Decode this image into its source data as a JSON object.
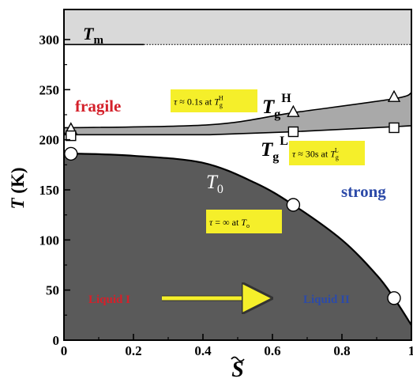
{
  "chart_data": {
    "type": "area",
    "xlabel": "S",
    "ylabel": "T (K)",
    "xlim": [
      0,
      1
    ],
    "ylim": [
      0,
      330
    ],
    "xticks": [
      "0",
      "0.2",
      "0.4",
      "0.6",
      "0.8",
      "1"
    ],
    "yticks": [
      "0",
      "50",
      "100",
      "150",
      "200",
      "250",
      "300"
    ],
    "tm_line": {
      "label": "T",
      "subscript": "m",
      "y": 295
    },
    "regions": [
      {
        "name": "T0 region",
        "color": "#5a5a5a",
        "boundary_x": [
          0,
          0.05,
          0.2,
          0.4,
          0.55,
          0.66,
          0.8,
          0.9,
          0.95,
          1.0
        ],
        "boundary_y": [
          186,
          186,
          184,
          177,
          157,
          135,
          100,
          65,
          42,
          15
        ]
      },
      {
        "name": "glass transition band",
        "color": "#a9a9a9",
        "lower_x": [
          0,
          0.42,
          0.66,
          0.95,
          1.0
        ],
        "lower_y": [
          205,
          205,
          208,
          213,
          214
        ],
        "upper_x": [
          0,
          0.42,
          0.66,
          0.95,
          1.0
        ],
        "upper_y": [
          212,
          215,
          227,
          241,
          247
        ]
      }
    ],
    "series": [
      {
        "name": "Tg^H",
        "marker": "triangle",
        "x": [
          0.02,
          0.66,
          0.95
        ],
        "y": [
          211,
          228,
          243
        ]
      },
      {
        "name": "Tg^L",
        "marker": "square",
        "x": [
          0.02,
          0.66,
          0.95
        ],
        "y": [
          204,
          208,
          212
        ]
      },
      {
        "name": "T0",
        "marker": "circle",
        "x": [
          0.02,
          0.66,
          0.95
        ],
        "y": [
          186,
          135,
          42
        ]
      }
    ],
    "labels": {
      "tm_main": "T",
      "tm_sub": "m",
      "fragile": "fragile",
      "strong": "strong",
      "tgh_main": "T",
      "tgh_sub": "g",
      "tgh_sup": "H",
      "tgl_main": "T",
      "tgl_sub": "g",
      "tgl_sup": "L",
      "t0_main": "T",
      "t0_sub": "0",
      "liquid1": "Liquid I",
      "liquid2": "Liquid II",
      "box_high": {
        "tau": "τ",
        "eq": " ≈ 0.1s at ",
        "T": "T",
        "sub": "g",
        "sup": "H"
      },
      "box_low": {
        "tau": "τ",
        "eq": " ≈ 30s at ",
        "T": "T",
        "sub": "g",
        "sup": "L"
      },
      "box_inf": {
        "tau": "τ",
        "eq": " = ∞ at ",
        "T": "T",
        "sub": "o"
      }
    },
    "colors": {
      "melt_band": "#d9d9d9",
      "dark_region": "#5a5a5a",
      "band": "#a9a9a9",
      "highlight": "#f5ef2a",
      "arrow": "#f5ef2a"
    }
  }
}
